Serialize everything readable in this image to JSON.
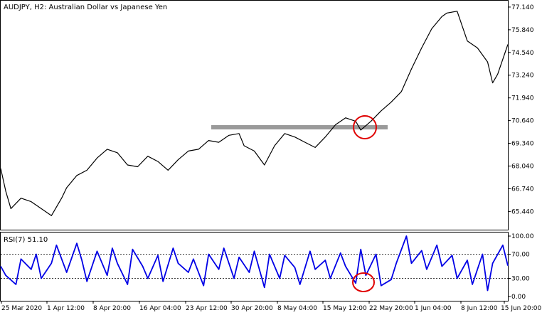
{
  "header": {
    "symbol_title": "AUDJPY, H2:  Australian Dollar vs Japanese Yen"
  },
  "rsi_panel": {
    "label": "RSI(7) 51.10"
  },
  "colors": {
    "price_line": "#000000",
    "rsi_line": "#0000e6",
    "support_band": "#9a9a9a",
    "highlight_circle": "#e00000",
    "grid_dotted": "#000000",
    "frame": "#000000"
  },
  "chart_data": [
    {
      "type": "line",
      "title": "AUDJPY, H2:  Australian Dollar vs Japanese Yen",
      "ylim": [
        64.6,
        77.3
      ],
      "y_ticks": [
        "77.140",
        "75.840",
        "74.540",
        "73.240",
        "71.940",
        "70.640",
        "69.340",
        "68.040",
        "66.740",
        "65.440"
      ],
      "y_tick_values": [
        77.14,
        75.84,
        74.54,
        73.24,
        71.94,
        70.64,
        69.34,
        68.04,
        66.74,
        65.44
      ],
      "x_ticks": [
        "25 Mar 2020",
        "1 Apr 12:00",
        "8 Apr 20:00",
        "16 Apr 04:00",
        "23 Apr 12:00",
        "30 Apr 20:00",
        "8 May 04:00",
        "15 May 12:00",
        "22 May 20:00",
        "1 Jun 04:00",
        "8 Jun 12:00",
        "15 Jun 20:00"
      ],
      "series": [
        {
          "x_fraction": [
            0.0,
            0.01,
            0.02,
            0.04,
            0.06,
            0.08,
            0.1,
            0.12,
            0.13,
            0.15,
            0.17,
            0.19,
            0.21,
            0.23,
            0.25,
            0.27,
            0.29,
            0.31,
            0.33,
            0.35,
            0.37,
            0.39,
            0.41,
            0.43,
            0.45,
            0.47,
            0.48,
            0.5,
            0.52,
            0.54,
            0.56,
            0.58,
            0.6,
            0.62,
            0.64,
            0.66,
            0.68,
            0.7,
            0.71,
            0.73,
            0.75,
            0.77,
            0.79,
            0.81,
            0.83,
            0.85,
            0.87,
            0.88,
            0.9,
            0.92,
            0.94,
            0.96,
            0.97,
            0.98,
            1.0
          ],
          "values": [
            67.9,
            66.6,
            65.6,
            66.2,
            66.0,
            65.6,
            65.2,
            66.2,
            66.8,
            67.5,
            67.8,
            68.5,
            69.0,
            68.8,
            68.1,
            68.0,
            68.6,
            68.3,
            67.8,
            68.4,
            68.9,
            69.0,
            69.5,
            69.4,
            69.8,
            69.9,
            69.2,
            68.9,
            68.1,
            69.2,
            69.9,
            69.7,
            69.4,
            69.1,
            69.7,
            70.4,
            70.8,
            70.6,
            70.1,
            70.6,
            71.2,
            71.7,
            72.3,
            73.6,
            74.8,
            75.9,
            76.6,
            76.8,
            76.9,
            75.2,
            74.8,
            74.0,
            72.8,
            73.3,
            75.0
          ]
        }
      ]
    },
    {
      "type": "line",
      "title": "RSI(7) 51.10",
      "ylim": [
        0,
        100
      ],
      "y_ticks": [
        "100.00",
        "70.00",
        "30.00",
        "0.00"
      ],
      "y_tick_values": [
        100,
        70,
        30,
        0
      ],
      "reference_levels": [
        70,
        30
      ],
      "series": [
        {
          "name": "RSI(7)",
          "x_fraction": [
            0.0,
            0.01,
            0.03,
            0.04,
            0.06,
            0.07,
            0.08,
            0.1,
            0.11,
            0.13,
            0.15,
            0.16,
            0.17,
            0.19,
            0.21,
            0.22,
            0.23,
            0.25,
            0.26,
            0.28,
            0.29,
            0.31,
            0.32,
            0.34,
            0.35,
            0.37,
            0.38,
            0.4,
            0.41,
            0.43,
            0.44,
            0.46,
            0.47,
            0.49,
            0.5,
            0.52,
            0.53,
            0.55,
            0.56,
            0.58,
            0.59,
            0.61,
            0.62,
            0.64,
            0.65,
            0.67,
            0.68,
            0.7,
            0.71,
            0.72,
            0.74,
            0.75,
            0.77,
            0.78,
            0.8,
            0.81,
            0.83,
            0.84,
            0.86,
            0.87,
            0.89,
            0.9,
            0.92,
            0.93,
            0.95,
            0.96,
            0.97,
            0.99,
            1.0
          ],
          "values": [
            50,
            35,
            20,
            62,
            45,
            70,
            30,
            55,
            85,
            40,
            88,
            60,
            25,
            75,
            35,
            80,
            55,
            20,
            78,
            50,
            30,
            68,
            25,
            80,
            55,
            40,
            62,
            18,
            70,
            45,
            80,
            30,
            65,
            40,
            75,
            15,
            70,
            30,
            68,
            48,
            20,
            75,
            45,
            60,
            30,
            72,
            50,
            22,
            78,
            35,
            70,
            18,
            28,
            55,
            100,
            55,
            76,
            45,
            85,
            50,
            68,
            30,
            60,
            20,
            70,
            10,
            55,
            85,
            51
          ]
        }
      ]
    }
  ]
}
